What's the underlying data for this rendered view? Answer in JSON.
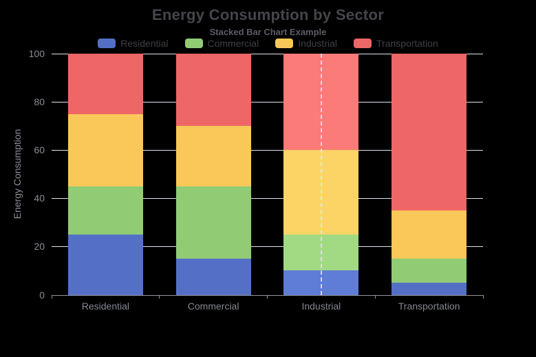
{
  "chart_data": {
    "type": "bar",
    "stacked": true,
    "title": "Energy Consumption by Sector",
    "subtitle": "Stacked Bar Chart Example",
    "categories": [
      "Residential",
      "Commercial",
      "Industrial",
      "Transportation"
    ],
    "series": [
      {
        "name": "Residential",
        "color": "#5470C6",
        "hover_color": "#5f7dd6",
        "values": [
          25,
          15,
          10,
          5
        ]
      },
      {
        "name": "Commercial",
        "color": "#91CC75",
        "hover_color": "#a2da84",
        "values": [
          20,
          30,
          15,
          10
        ]
      },
      {
        "name": "Industrial",
        "color": "#FAC858",
        "hover_color": "#fcd466",
        "values": [
          30,
          25,
          35,
          20
        ]
      },
      {
        "name": "Transportation",
        "color": "#EE6666",
        "hover_color": "#fa7b77",
        "values": [
          25,
          30,
          40,
          65
        ]
      }
    ],
    "totals": [
      100,
      100,
      100,
      100
    ],
    "xlabel": "",
    "ylabel": "Energy Consumption",
    "ylim": [
      0,
      100
    ],
    "yticks": [
      0,
      20,
      40,
      60,
      80,
      100
    ],
    "grid": true,
    "legend_position": "top-center",
    "background": "#000000",
    "highlighted_category": "Industrial",
    "axis_pointer": {
      "type": "dashed-line",
      "category": "Industrial"
    }
  }
}
